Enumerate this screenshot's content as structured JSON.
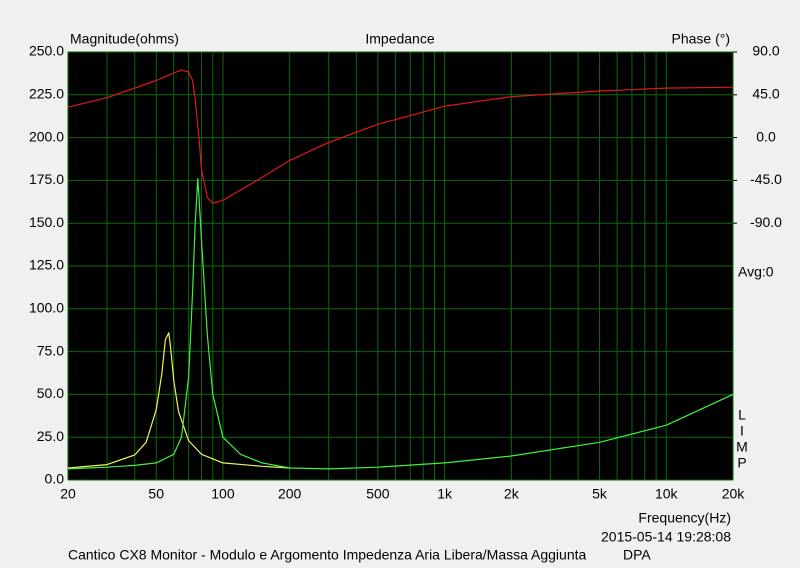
{
  "chart_data": {
    "type": "line",
    "title": "Impedance",
    "ylabel": "Magnitude(ohms)",
    "y2label": "Phase (°)",
    "xlabel": "Frequency(Hz)",
    "timestamp": "2015-05-14 19:28:08",
    "caption": "Cantico CX8 Monitor - Modulo e Argomento Impedenza Aria Libera/Massa Aggiunta",
    "caption_tag": "DPA",
    "annotation": "Avg:0",
    "side_labels": [
      "L",
      "I",
      "M",
      "P"
    ],
    "xscale": "log",
    "xlim": [
      20,
      20000
    ],
    "xticks": [
      20,
      50,
      100,
      200,
      500,
      {
        "value": 1000,
        "label": "1k"
      },
      {
        "value": 2000,
        "label": "2k"
      },
      {
        "value": 5000,
        "label": "5k"
      },
      {
        "value": 10000,
        "label": "10k"
      },
      {
        "value": 20000,
        "label": "20k"
      }
    ],
    "xminor": [
      30,
      40,
      60,
      70,
      80,
      90,
      300,
      400,
      600,
      700,
      800,
      900,
      3000,
      4000,
      6000,
      7000,
      8000,
      9000
    ],
    "ylim": [
      0,
      250
    ],
    "yticks": [
      {
        "value": 0,
        "label": "0.0"
      },
      {
        "value": 25,
        "label": "25.0"
      },
      {
        "value": 50,
        "label": "50.0"
      },
      {
        "value": 75,
        "label": "75.0"
      },
      {
        "value": 100,
        "label": "100.0"
      },
      {
        "value": 125,
        "label": "125.0"
      },
      {
        "value": 150,
        "label": "150.0"
      },
      {
        "value": 175,
        "label": "175.0"
      },
      {
        "value": 200,
        "label": "200.0"
      },
      {
        "value": 225,
        "label": "225.0"
      },
      {
        "value": 250,
        "label": "250.0"
      }
    ],
    "y2lim": [
      -360,
      90
    ],
    "y2ticks": [
      {
        "value": 90,
        "label": "90.0"
      },
      {
        "value": 45,
        "label": "45.0"
      },
      {
        "value": 0,
        "label": "0.0"
      },
      {
        "value": -45,
        "label": "-45.0"
      },
      {
        "value": -90,
        "label": "-90.0"
      }
    ],
    "grid": true,
    "series": [
      {
        "color": "#e01818",
        "axis": "y2",
        "x": [
          20,
          30,
          40,
          50,
          60,
          65,
          70,
          73,
          75,
          78,
          80,
          85,
          90,
          100,
          150,
          200,
          300,
          500,
          1000,
          2000,
          5000,
          10000,
          20000
        ],
        "values": [
          32,
          42,
          52,
          60,
          68,
          71,
          69,
          60,
          40,
          0,
          -34,
          -63,
          -69,
          -66,
          -42,
          -24,
          -5,
          14,
          33,
          43,
          49,
          52,
          53
        ]
      },
      {
        "color": "#f0f060",
        "x": [
          20,
          30,
          40,
          45,
          50,
          53,
          55,
          57,
          58,
          60,
          63,
          70,
          80,
          100,
          150,
          200
        ],
        "values": [
          7,
          9,
          14.6,
          22,
          41,
          62,
          82,
          86,
          78,
          58,
          40,
          23,
          15,
          10,
          8,
          7
        ]
      },
      {
        "color": "#40f040",
        "x": [
          20,
          30,
          40,
          50,
          60,
          65,
          70,
          73,
          75,
          77,
          78,
          80,
          85,
          90,
          100,
          120,
          150,
          200,
          300,
          500,
          1000,
          2000,
          5000,
          10000,
          20000
        ],
        "values": [
          6.5,
          7.5,
          8.5,
          10,
          15,
          25,
          60,
          110,
          150,
          176,
          165,
          140,
          85,
          50,
          25,
          15,
          10,
          7,
          6.5,
          7.5,
          10,
          14,
          22,
          32,
          50
        ]
      }
    ]
  }
}
